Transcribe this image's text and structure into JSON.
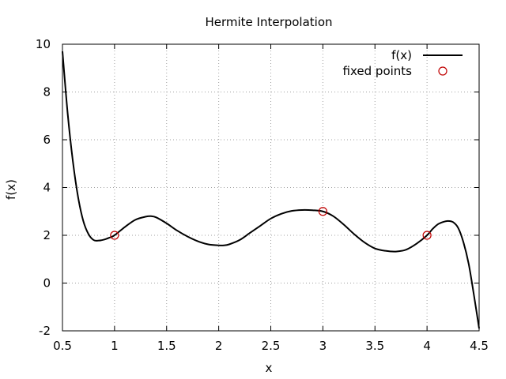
{
  "chart_data": {
    "type": "line",
    "title": "Hermite Interpolation",
    "xlabel": "x",
    "ylabel": "f(x)",
    "xlim": [
      0.5,
      4.5
    ],
    "ylim": [
      -2,
      10
    ],
    "xticks": [
      0.5,
      1,
      1.5,
      2,
      2.5,
      3,
      3.5,
      4,
      4.5
    ],
    "xtick_labels": [
      "0.5",
      "1",
      "1.5",
      "2",
      "2.5",
      "3",
      "3.5",
      "4",
      "4.5"
    ],
    "yticks": [
      -2,
      0,
      2,
      4,
      6,
      8,
      10
    ],
    "ytick_labels": [
      "-2",
      "0",
      "2",
      "4",
      "6",
      "8",
      "10"
    ],
    "grid": true,
    "legend_position": "top-right",
    "series": [
      {
        "name": "f(x)",
        "kind": "line",
        "color": "#000000",
        "x": [
          0.5,
          0.55,
          0.6,
          0.65,
          0.7,
          0.75,
          0.8,
          0.85,
          0.9,
          0.95,
          1.0,
          1.1,
          1.2,
          1.3,
          1.35,
          1.4,
          1.5,
          1.6,
          1.7,
          1.8,
          1.9,
          2.0,
          2.05,
          2.1,
          2.2,
          2.3,
          2.4,
          2.5,
          2.6,
          2.7,
          2.8,
          2.9,
          3.0,
          3.1,
          3.2,
          3.3,
          3.4,
          3.5,
          3.6,
          3.7,
          3.8,
          3.9,
          4.0,
          4.05,
          4.1,
          4.15,
          4.2,
          4.25,
          4.3,
          4.35,
          4.4,
          4.45,
          4.5
        ],
        "y": [
          9.7,
          7.1,
          5.1,
          3.6,
          2.6,
          2.05,
          1.8,
          1.78,
          1.82,
          1.9,
          2.0,
          2.35,
          2.65,
          2.78,
          2.8,
          2.75,
          2.5,
          2.2,
          1.95,
          1.75,
          1.62,
          1.58,
          1.58,
          1.62,
          1.8,
          2.1,
          2.4,
          2.7,
          2.9,
          3.02,
          3.06,
          3.05,
          3.0,
          2.8,
          2.45,
          2.05,
          1.7,
          1.45,
          1.35,
          1.32,
          1.4,
          1.65,
          2.0,
          2.25,
          2.45,
          2.55,
          2.6,
          2.55,
          2.3,
          1.7,
          0.8,
          -0.5,
          -1.9
        ]
      },
      {
        "name": "fixed points",
        "kind": "points",
        "color": "#c00000",
        "x": [
          1,
          3,
          4
        ],
        "y": [
          2,
          3,
          2
        ]
      }
    ]
  }
}
